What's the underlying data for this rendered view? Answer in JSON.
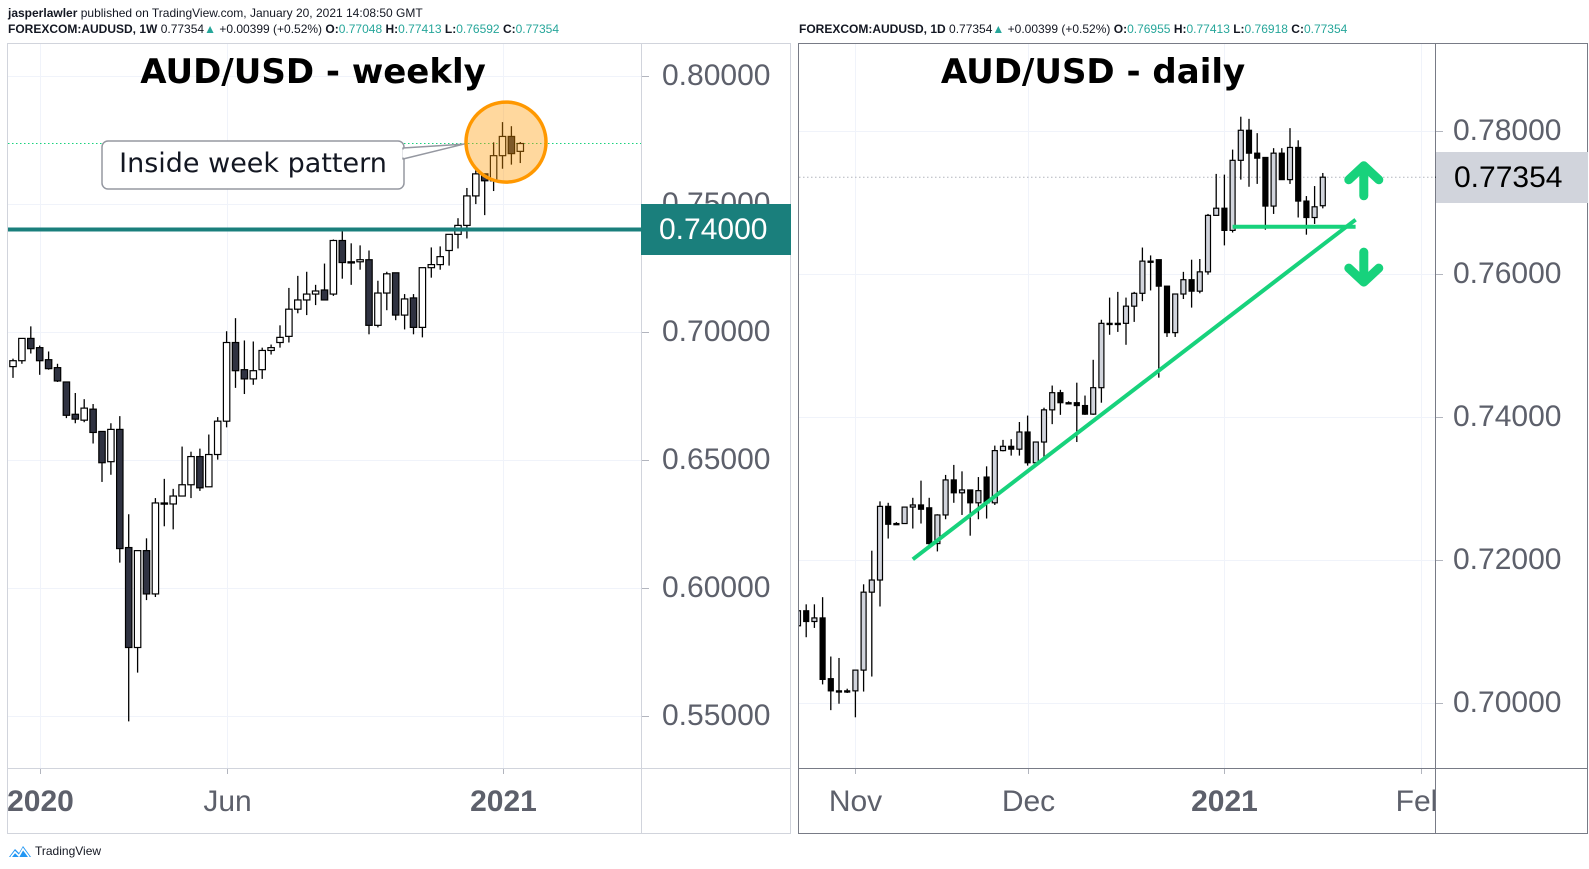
{
  "header": {
    "author": "jasperlawler",
    "published": "published on TradingView.com, January 20, 2021 14:08:50 GMT",
    "weekly_line": {
      "symbol": "FOREXCOM:AUDUSD, 1W",
      "last": "0.77354",
      "change": "+0.00399 (+0.52%)",
      "o_label": "O:",
      "o": "0.77048",
      "h_label": "H:",
      "h": "0.77413",
      "l_label": "L:",
      "l": "0.76592",
      "c_label": "C:",
      "c": "0.77354"
    },
    "daily_line": {
      "symbol": "FOREXCOM:AUDUSD, 1D",
      "last": "0.77354",
      "change": "+0.00399 (+0.52%)",
      "o_label": "O:",
      "o": "0.76955",
      "h_label": "H:",
      "h": "0.77413",
      "l_label": "L:",
      "l": "0.76918",
      "c_label": "C:",
      "c": "0.77354"
    },
    "up_icon": "triangle-up-icon"
  },
  "footer": {
    "brand": "TradingView",
    "logo_icon": "tradingview-logo-icon"
  },
  "colors": {
    "teal_level": "#1a7f7c",
    "green_annotation": "#17d27c",
    "orange_highlight": "#ff9800",
    "bull_weekly": "#ffffff",
    "bear_weekly": "#2f3241",
    "bull_daily": "#d1d4dc",
    "bear_daily": "#000000",
    "value_teal": "#26a69a",
    "axis_text": "#5d606b"
  },
  "chart_data": [
    {
      "type": "bar",
      "style": "candlestick",
      "title": "AUD/USD - weekly",
      "symbol": "FOREXCOM:AUDUSD",
      "interval": "1W",
      "ylim": [
        0.535,
        0.8265
      ],
      "grid": true,
      "y_ticks": [
        {
          "value": 0.8,
          "label": "0.80000"
        },
        {
          "value": 0.75,
          "label": "0.75000"
        },
        {
          "value": 0.7,
          "label": "0.70000"
        },
        {
          "value": 0.65,
          "label": "0.65000"
        },
        {
          "value": 0.6,
          "label": "0.60000"
        },
        {
          "value": 0.55,
          "label": "0.55000"
        }
      ],
      "x_ticks": [
        {
          "date": "2020-01-06",
          "label": "2020",
          "major": true
        },
        {
          "date": "2020-06-01",
          "label": "Jun",
          "major": false
        },
        {
          "date": "2021-01-04",
          "label": "2021",
          "major": true
        }
      ],
      "candle_fields": [
        "date",
        "open",
        "high",
        "low",
        "close"
      ],
      "candles": [
        [
          "2019-12-16",
          0.6865,
          0.6896,
          0.6821,
          0.6888
        ],
        [
          "2019-12-23",
          0.6888,
          0.6975,
          0.6876,
          0.6975
        ],
        [
          "2019-12-30",
          0.6975,
          0.7022,
          0.6916,
          0.6935
        ],
        [
          "2020-01-06",
          0.6939,
          0.6947,
          0.6833,
          0.6888
        ],
        [
          "2020-01-13",
          0.6892,
          0.6924,
          0.6853,
          0.6857
        ],
        [
          "2020-01-20",
          0.6861,
          0.6876,
          0.6805,
          0.6809
        ],
        [
          "2020-01-27",
          0.6805,
          0.6805,
          0.6664,
          0.6675
        ],
        [
          "2020-02-03",
          0.6679,
          0.6762,
          0.6644,
          0.666
        ],
        [
          "2020-02-10",
          0.6656,
          0.6738,
          0.6648,
          0.6703
        ],
        [
          "2020-02-17",
          0.6699,
          0.6719,
          0.6565,
          0.6608
        ],
        [
          "2020-02-24",
          0.6612,
          0.6612,
          0.6415,
          0.649
        ],
        [
          "2020-03-02",
          0.6494,
          0.6644,
          0.6443,
          0.662
        ],
        [
          "2020-03-09",
          0.662,
          0.6672,
          0.61,
          0.6155
        ],
        [
          "2020-03-16",
          0.6159,
          0.6289,
          0.5481,
          0.5769
        ],
        [
          "2020-03-23",
          0.5769,
          0.6147,
          0.5671,
          0.6147
        ],
        [
          "2020-03-30",
          0.6147,
          0.6195,
          0.5954,
          0.5978
        ],
        [
          "2020-04-06",
          0.5978,
          0.6352,
          0.5966,
          0.6333
        ],
        [
          "2020-04-13",
          0.6333,
          0.6427,
          0.6242,
          0.6329
        ],
        [
          "2020-04-20",
          0.6329,
          0.6388,
          0.623,
          0.636
        ],
        [
          "2020-04-27",
          0.636,
          0.6553,
          0.636,
          0.6404
        ],
        [
          "2020-05-04",
          0.6404,
          0.6533,
          0.6352,
          0.6514
        ],
        [
          "2020-05-11",
          0.6514,
          0.6545,
          0.638,
          0.6392
        ],
        [
          "2020-05-18",
          0.6396,
          0.66,
          0.6396,
          0.6522
        ],
        [
          "2020-05-25",
          0.6522,
          0.6668,
          0.6502,
          0.6652
        ],
        [
          "2020-06-01",
          0.6652,
          0.7003,
          0.6628,
          0.6959
        ],
        [
          "2020-06-08",
          0.6959,
          0.7054,
          0.6782,
          0.6849
        ],
        [
          "2020-06-15",
          0.6853,
          0.6967,
          0.6758,
          0.6817
        ],
        [
          "2020-06-22",
          0.6817,
          0.6963,
          0.6794,
          0.6849
        ],
        [
          "2020-06-29",
          0.6853,
          0.6939,
          0.6817,
          0.6928
        ],
        [
          "2020-07-06",
          0.6928,
          0.6951,
          0.6912,
          0.6939
        ],
        [
          "2020-07-13",
          0.6959,
          0.7026,
          0.6939,
          0.6979
        ],
        [
          "2020-07-20",
          0.6983,
          0.7172,
          0.6959,
          0.7089
        ],
        [
          "2020-07-27",
          0.7089,
          0.7219,
          0.7073,
          0.7125
        ],
        [
          "2020-08-03",
          0.7125,
          0.7235,
          0.7066,
          0.7148
        ],
        [
          "2020-08-10",
          0.7148,
          0.7184,
          0.7105,
          0.716
        ],
        [
          "2020-08-17",
          0.7164,
          0.7267,
          0.7125,
          0.7125
        ],
        [
          "2020-08-24",
          0.7148,
          0.7361,
          0.7141,
          0.7357
        ],
        [
          "2020-08-31",
          0.7357,
          0.7404,
          0.7208,
          0.7271
        ],
        [
          "2020-09-07",
          0.7274,
          0.7346,
          0.7184,
          0.7271
        ],
        [
          "2020-09-14",
          0.7274,
          0.7338,
          0.7243,
          0.7282
        ],
        [
          "2020-09-21",
          0.7282,
          0.7318,
          0.6991,
          0.7026
        ],
        [
          "2020-09-28",
          0.7026,
          0.72,
          0.7018,
          0.7152
        ],
        [
          "2020-10-05",
          0.7152,
          0.7235,
          0.7085,
          0.7227
        ],
        [
          "2020-10-12",
          0.7231,
          0.7231,
          0.7046,
          0.7066
        ],
        [
          "2020-10-19",
          0.7066,
          0.7148,
          0.701,
          0.7129
        ],
        [
          "2020-10-26",
          0.7133,
          0.7148,
          0.6991,
          0.7018
        ],
        [
          "2020-11-02",
          0.7018,
          0.7251,
          0.6979,
          0.7251
        ],
        [
          "2020-11-09",
          0.7251,
          0.733,
          0.7212,
          0.7263
        ],
        [
          "2020-11-16",
          0.7263,
          0.7334,
          0.7243,
          0.7294
        ],
        [
          "2020-11-23",
          0.7318,
          0.7381,
          0.7259,
          0.7381
        ],
        [
          "2020-11-30",
          0.7381,
          0.7444,
          0.7326,
          0.7416
        ],
        [
          "2020-12-07",
          0.7416,
          0.7562,
          0.7365,
          0.7531
        ],
        [
          "2020-12-14",
          0.7531,
          0.7633,
          0.7499,
          0.7617
        ],
        [
          "2020-12-21",
          0.7617,
          0.7617,
          0.7456,
          0.759
        ],
        [
          "2020-12-28",
          0.759,
          0.774,
          0.755,
          0.7688
        ],
        [
          "2021-01-04",
          0.7688,
          0.7819,
          0.7637,
          0.7763
        ],
        [
          "2021-01-11",
          0.7763,
          0.7803,
          0.7653,
          0.7696
        ],
        [
          "2021-01-18",
          0.77048,
          0.77413,
          0.76592,
          0.77354
        ]
      ],
      "last_price": {
        "value": 0.77354,
        "line": "dotted",
        "color": "#17d27c"
      },
      "horizontal_level": {
        "value": 0.74,
        "label": "0.74000",
        "color": "#1a7f7c"
      },
      "highlight_circle": {
        "date": "2021-01-04",
        "price": 0.7741,
        "color": "#ff9800"
      },
      "callout": {
        "text": "Inside week pattern"
      }
    },
    {
      "type": "bar",
      "style": "candlestick",
      "title": "AUD/USD - daily",
      "symbol": "FOREXCOM:AUDUSD",
      "interval": "1D",
      "ylim": [
        0.6913,
        0.7917
      ],
      "grid": true,
      "y_ticks": [
        {
          "value": 0.78,
          "label": "0.78000"
        },
        {
          "value": 0.76,
          "label": "0.76000"
        },
        {
          "value": 0.74,
          "label": "0.74000"
        },
        {
          "value": 0.72,
          "label": "0.72000"
        },
        {
          "value": 0.7,
          "label": "0.70000"
        }
      ],
      "x_ticks": [
        {
          "date": "2020-11-02",
          "label": "Nov",
          "major": false
        },
        {
          "date": "2020-12-01",
          "label": "Dec",
          "major": false
        },
        {
          "date": "2021-01-04",
          "label": "2021",
          "major": true
        },
        {
          "date": "2021-02-01",
          "label": "Feb",
          "major": false
        }
      ],
      "candle_fields": [
        "date",
        "open",
        "high",
        "low",
        "close"
      ],
      "candles": [
        [
          "2020-10-22",
          0.7108,
          0.7136,
          0.7105,
          0.7129
        ],
        [
          "2020-10-23",
          0.7129,
          0.7138,
          0.7092,
          0.7114
        ],
        [
          "2020-10-26",
          0.7114,
          0.7138,
          0.7105,
          0.7119
        ],
        [
          "2020-10-27",
          0.7119,
          0.7148,
          0.7026,
          0.7033
        ],
        [
          "2020-10-28",
          0.7034,
          0.7065,
          0.699,
          0.7017
        ],
        [
          "2020-10-29",
          0.7017,
          0.7063,
          0.6999,
          0.7017
        ],
        [
          "2020-10-30",
          0.7017,
          0.702,
          0.7014,
          0.7017
        ],
        [
          "2020-11-02",
          0.7017,
          0.7046,
          0.698,
          0.7046
        ],
        [
          "2020-11-03",
          0.7046,
          0.7166,
          0.7016,
          0.7155
        ],
        [
          "2020-11-04",
          0.7155,
          0.7213,
          0.7037,
          0.7172
        ],
        [
          "2020-11-05",
          0.7172,
          0.7282,
          0.7135,
          0.7275
        ],
        [
          "2020-11-06",
          0.7275,
          0.728,
          0.723,
          0.725
        ],
        [
          "2020-11-09",
          0.7251,
          0.7253,
          0.7249,
          0.7251
        ],
        [
          "2020-11-10",
          0.7251,
          0.7274,
          0.7251,
          0.7274
        ],
        [
          "2020-11-11",
          0.7274,
          0.7287,
          0.7244,
          0.7277
        ],
        [
          "2020-11-12",
          0.7277,
          0.7311,
          0.7251,
          0.7271
        ],
        [
          "2020-11-13",
          0.7273,
          0.7287,
          0.7216,
          0.7223
        ],
        [
          "2020-11-16",
          0.7223,
          0.7264,
          0.7212,
          0.7263
        ],
        [
          "2020-11-17",
          0.7263,
          0.7319,
          0.7257,
          0.7312
        ],
        [
          "2020-11-18",
          0.7312,
          0.7333,
          0.728,
          0.7294
        ],
        [
          "2020-11-19",
          0.7294,
          0.7324,
          0.7263,
          0.7298
        ],
        [
          "2020-11-20",
          0.7298,
          0.7298,
          0.7234,
          0.728
        ],
        [
          "2020-11-23",
          0.728,
          0.7316,
          0.7257,
          0.7297
        ],
        [
          "2020-11-24",
          0.7316,
          0.7331,
          0.7258,
          0.728
        ],
        [
          "2020-11-25",
          0.728,
          0.736,
          0.7277,
          0.7353
        ],
        [
          "2020-11-26",
          0.7353,
          0.7368,
          0.7352,
          0.7359
        ],
        [
          "2020-11-27",
          0.7359,
          0.7369,
          0.7346,
          0.7355
        ],
        [
          "2020-11-30",
          0.7355,
          0.7393,
          0.7346,
          0.7379
        ],
        [
          "2020-12-01",
          0.7379,
          0.7402,
          0.7332,
          0.7336
        ],
        [
          "2020-12-02",
          0.7336,
          0.7365,
          0.7335,
          0.7365
        ],
        [
          "2020-12-03",
          0.7365,
          0.7413,
          0.7343,
          0.741
        ],
        [
          "2020-12-04",
          0.741,
          0.7444,
          0.739,
          0.7434
        ],
        [
          "2020-12-07",
          0.7434,
          0.7438,
          0.7403,
          0.742
        ],
        [
          "2020-12-08",
          0.742,
          0.7422,
          0.7418,
          0.742
        ],
        [
          "2020-12-09",
          0.742,
          0.7448,
          0.7365,
          0.7416
        ],
        [
          "2020-12-10",
          0.7416,
          0.743,
          0.7403,
          0.7404
        ],
        [
          "2020-12-11",
          0.7404,
          0.748,
          0.7403,
          0.7441
        ],
        [
          "2020-12-14",
          0.7441,
          0.7536,
          0.742,
          0.7531
        ],
        [
          "2020-12-15",
          0.7531,
          0.7567,
          0.7515,
          0.7531
        ],
        [
          "2020-12-16",
          0.7531,
          0.7575,
          0.7519,
          0.7531
        ],
        [
          "2020-12-17",
          0.7531,
          0.7567,
          0.7501,
          0.7555
        ],
        [
          "2020-12-18",
          0.7555,
          0.7575,
          0.7533,
          0.7573
        ],
        [
          "2020-12-21",
          0.7573,
          0.7637,
          0.7562,
          0.7618
        ],
        [
          "2020-12-22",
          0.7618,
          0.7626,
          0.7577,
          0.7618
        ],
        [
          "2020-12-23",
          0.762,
          0.762,
          0.7455,
          0.7583
        ],
        [
          "2020-12-24",
          0.7583,
          0.7583,
          0.7512,
          0.7518
        ],
        [
          "2020-12-25",
          0.7518,
          0.7572,
          0.7512,
          0.7572
        ],
        [
          "2020-12-28",
          0.7572,
          0.7603,
          0.7565,
          0.7592
        ],
        [
          "2020-12-29",
          0.7592,
          0.762,
          0.7553,
          0.7576
        ],
        [
          "2020-12-30",
          0.7576,
          0.7621,
          0.7573,
          0.7603
        ],
        [
          "2020-12-31",
          0.7603,
          0.7684,
          0.7599,
          0.7682
        ],
        [
          "2021-01-01",
          0.7682,
          0.774,
          0.7682,
          0.7692
        ],
        [
          "2021-01-04",
          0.7692,
          0.7739,
          0.764,
          0.7661
        ],
        [
          "2021-01-05",
          0.7661,
          0.7774,
          0.7658,
          0.7759
        ],
        [
          "2021-01-06",
          0.7759,
          0.782,
          0.7732,
          0.7801
        ],
        [
          "2021-01-07",
          0.7801,
          0.7817,
          0.7722,
          0.7769
        ],
        [
          "2021-01-08",
          0.7769,
          0.7797,
          0.7726,
          0.7762
        ],
        [
          "2021-01-11",
          0.7763,
          0.7763,
          0.7662,
          0.7695
        ],
        [
          "2021-01-12",
          0.7695,
          0.7776,
          0.7684,
          0.7769
        ],
        [
          "2021-01-13",
          0.7769,
          0.7776,
          0.7732,
          0.7732
        ],
        [
          "2021-01-14",
          0.7732,
          0.7804,
          0.7726,
          0.7777
        ],
        [
          "2021-01-15",
          0.7777,
          0.7787,
          0.7679,
          0.7702
        ],
        [
          "2021-01-18",
          0.7702,
          0.7709,
          0.7655,
          0.7679
        ],
        [
          "2021-01-19",
          0.7679,
          0.7723,
          0.767,
          0.7694
        ],
        [
          "2021-01-20",
          0.76955,
          0.77413,
          0.76918,
          0.77354
        ]
      ],
      "last_price": {
        "value": 0.77354,
        "label": "0.77354",
        "line": "dotted",
        "color": "#d1d4dc"
      },
      "trendline": {
        "start": {
          "date": "2020-11-11",
          "price": 0.7201
        },
        "end": {
          "date": "2021-01-24",
          "price": 0.7676
        },
        "color": "#17d27c"
      },
      "support_line": {
        "start": {
          "date": "2021-01-05",
          "price": 0.7666
        },
        "end": {
          "date": "2021-01-24",
          "price": 0.7666
        },
        "color": "#17d27c"
      },
      "arrows": [
        {
          "direction": "up",
          "icon": "arrow-up-icon",
          "date": "2021-01-25",
          "price": 0.7729,
          "color": "#17d27c"
        },
        {
          "direction": "down",
          "icon": "arrow-down-icon",
          "date": "2021-01-25",
          "price": 0.7611,
          "color": "#17d27c"
        }
      ]
    }
  ]
}
